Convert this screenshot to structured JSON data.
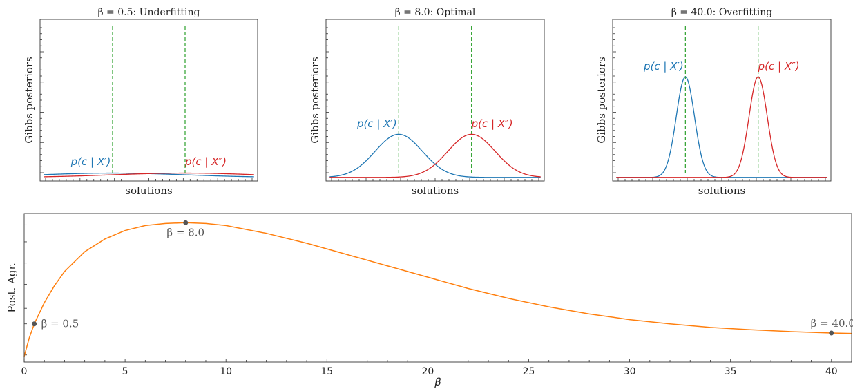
{
  "chart_data": [
    {
      "type": "line",
      "title": "β = 0.5: Underfitting",
      "xlabel": "solutions",
      "ylabel": "Gibbs posteriors",
      "vlines": [
        -1,
        1
      ],
      "vline_color": "#2ca02c",
      "xlim": [
        -3,
        3
      ],
      "ylim": [
        -0.05,
        2.2
      ],
      "series": [
        {
          "name": "p(c | X′)",
          "color": "#1f77b4",
          "center": -1,
          "sigma": 2.0,
          "amplitude": 0.06,
          "label_x": -1.4,
          "label_y": 0.17
        },
        {
          "name": "p(c | X″)",
          "color": "#d62728",
          "center": 1,
          "sigma": 2.0,
          "amplitude": 0.06,
          "label_x": 1.1,
          "label_y": 0.17
        }
      ]
    },
    {
      "type": "line",
      "title": "β = 8.0: Optimal",
      "xlabel": "solutions",
      "ylabel": "Gibbs posteriors",
      "vlines": [
        -1,
        1
      ],
      "vline_color": "#2ca02c",
      "xlim": [
        -3,
        3
      ],
      "ylim": [
        -0.05,
        2.2
      ],
      "series": [
        {
          "name": "p(c | X′)",
          "color": "#1f77b4",
          "center": -1,
          "sigma": 0.65,
          "amplitude": 0.6,
          "label_x": -1.4,
          "label_y": 0.7
        },
        {
          "name": "p(c | X″)",
          "color": "#d62728",
          "center": 1,
          "sigma": 0.65,
          "amplitude": 0.6,
          "label_x": 1.1,
          "label_y": 0.7
        }
      ]
    },
    {
      "type": "line",
      "title": "β = 40.0: Overfitting",
      "xlabel": "solutions",
      "ylabel": "Gibbs posteriors",
      "vlines": [
        -1,
        1
      ],
      "vline_color": "#2ca02c",
      "xlim": [
        -3,
        3
      ],
      "ylim": [
        -0.05,
        2.2
      ],
      "series": [
        {
          "name": "p(c | X′)",
          "color": "#1f77b4",
          "center": -1,
          "sigma": 0.25,
          "amplitude": 1.4,
          "label_x": -1.4,
          "label_y": 1.5
        },
        {
          "name": "p(c | X″)",
          "color": "#d62728",
          "center": 1,
          "sigma": 0.25,
          "amplitude": 1.4,
          "label_x": 1.1,
          "label_y": 1.5
        }
      ]
    },
    {
      "type": "line",
      "title": "",
      "xlabel": "β",
      "ylabel": "Post. Agr.",
      "xlim": [
        0,
        41
      ],
      "ylim": [
        0.0,
        1.05
      ],
      "xticks": [
        0,
        5,
        10,
        15,
        20,
        25,
        30,
        35,
        40
      ],
      "line_color": "#ff7f0e",
      "marker_color": "#555555",
      "curve": {
        "x": [
          0,
          0.25,
          0.5,
          1,
          1.5,
          2,
          3,
          4,
          5,
          6,
          7,
          8,
          9,
          10,
          12,
          14,
          16,
          18,
          20,
          22,
          24,
          26,
          28,
          30,
          32,
          34,
          36,
          38,
          40,
          41
        ],
        "y": [
          0.04,
          0.17,
          0.27,
          0.42,
          0.54,
          0.64,
          0.78,
          0.87,
          0.93,
          0.965,
          0.98,
          0.985,
          0.98,
          0.965,
          0.91,
          0.84,
          0.76,
          0.68,
          0.6,
          0.52,
          0.45,
          0.39,
          0.34,
          0.3,
          0.27,
          0.245,
          0.228,
          0.215,
          0.205,
          0.202
        ]
      },
      "points": [
        {
          "beta": 0.5,
          "value": 0.27,
          "label": "β = 0.5"
        },
        {
          "beta": 8.0,
          "value": 0.985,
          "label": "β = 8.0"
        },
        {
          "beta": 40.0,
          "value": 0.205,
          "label": "β = 40.0"
        }
      ]
    }
  ]
}
